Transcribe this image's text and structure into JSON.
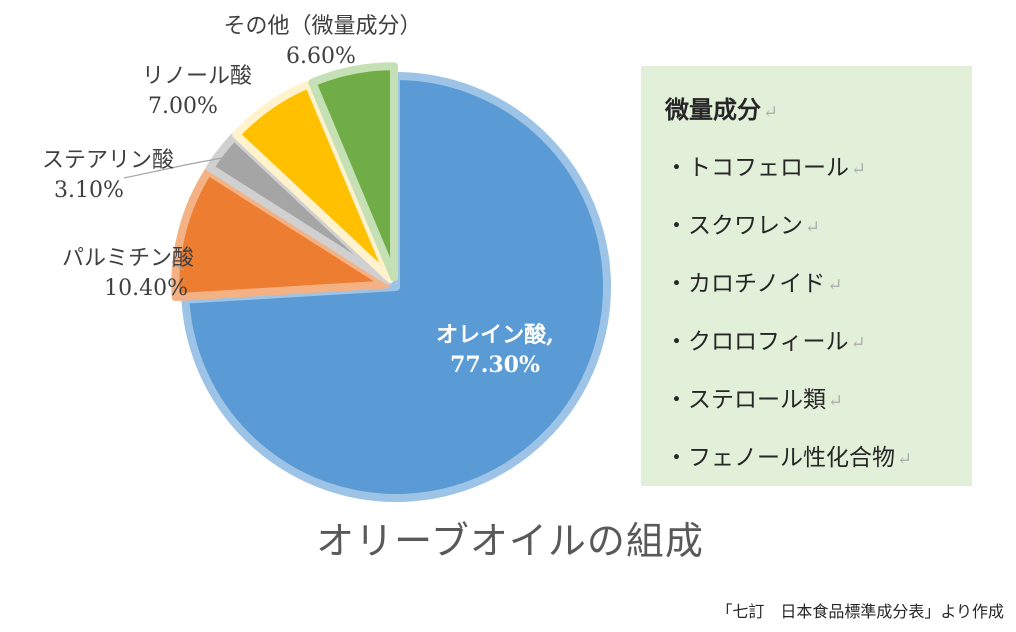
{
  "chart_data": {
    "type": "pie",
    "title": "オリーブオイルの組成",
    "categories": [
      "オレイン酸",
      "パルミチン酸",
      "ステアリン酸",
      "リノール酸",
      "その他（微量成分）"
    ],
    "values": [
      77.3,
      10.4,
      3.1,
      7.0,
      6.6
    ],
    "value_labels": [
      "77.30%",
      "10.40%",
      "3.10%",
      "7.00%",
      "6.60%"
    ],
    "olein_label": "オレイン酸,",
    "colors": [
      "#5b9bd5",
      "#ed7d31",
      "#a5a5a5",
      "#ffc000",
      "#70ad47"
    ],
    "outline_colors": [
      "#9dc3e6",
      "#f4b183",
      "#d0d0d0",
      "#fff2cc",
      "#c5e0b4"
    ],
    "legend": "none"
  },
  "minor_box": {
    "heading": "微量成分",
    "items": [
      "・トコフェロール",
      "・スクワレン",
      "・カロチノイド",
      "・クロロフィール",
      "・ステロール類",
      "・フェノール性化合物"
    ],
    "return_mark": "↵"
  },
  "source_note": "「七訂　日本食品標準成分表」より作成"
}
